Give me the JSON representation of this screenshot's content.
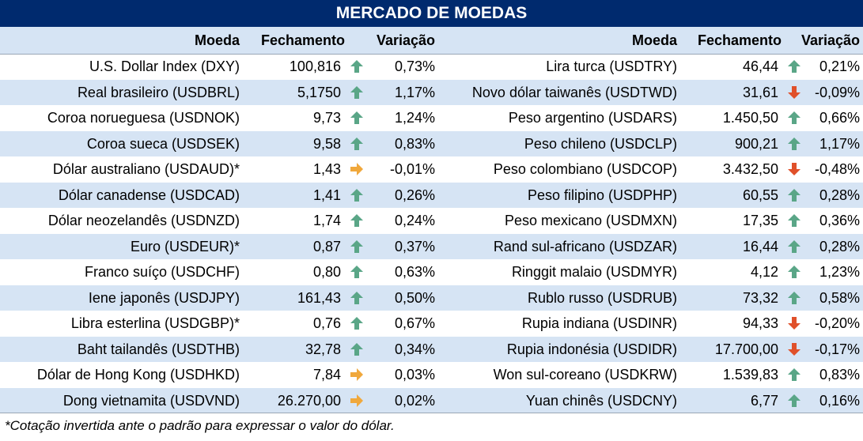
{
  "title": "MERCADO DE MOEDAS",
  "headers": {
    "left": {
      "moeda": "Moeda",
      "fechamento": "Fechamento",
      "variacao": "Variação"
    },
    "right": {
      "moeda": "Moeda",
      "fechamento": "Fechamento",
      "variacao": "Variação"
    }
  },
  "colors": {
    "up": "#5aa687",
    "down": "#e0502a",
    "flat": "#f0a83c",
    "header_bg": "#002a6e",
    "band": "#d6e4f4"
  },
  "left_rows": [
    {
      "moeda": "U.S. Dollar Index (DXY)",
      "fechamento": "100,816",
      "trend": "up",
      "variacao": "0,73%"
    },
    {
      "moeda": "Real brasileiro (USDBRL)",
      "fechamento": "5,1750",
      "trend": "up",
      "variacao": "1,17%"
    },
    {
      "moeda": "Coroa norueguesa (USDNOK)",
      "fechamento": "9,73",
      "trend": "up",
      "variacao": "1,24%"
    },
    {
      "moeda": "Coroa sueca (USDSEK)",
      "fechamento": "9,58",
      "trend": "up",
      "variacao": "0,83%"
    },
    {
      "moeda": "Dólar australiano (USDAUD)*",
      "fechamento": "1,43",
      "trend": "flat",
      "variacao": "-0,01%"
    },
    {
      "moeda": "Dólar canadense (USDCAD)",
      "fechamento": "1,41",
      "trend": "up",
      "variacao": "0,26%"
    },
    {
      "moeda": "Dólar neozelandês (USDNZD)",
      "fechamento": "1,74",
      "trend": "up",
      "variacao": "0,24%"
    },
    {
      "moeda": "Euro (USDEUR)*",
      "fechamento": "0,87",
      "trend": "up",
      "variacao": "0,37%"
    },
    {
      "moeda": "Franco suíço (USDCHF)",
      "fechamento": "0,80",
      "trend": "up",
      "variacao": "0,63%"
    },
    {
      "moeda": "Iene japonês (USDJPY)",
      "fechamento": "161,43",
      "trend": "up",
      "variacao": "0,50%"
    },
    {
      "moeda": "Libra esterlina (USDGBP)*",
      "fechamento": "0,76",
      "trend": "up",
      "variacao": "0,67%"
    },
    {
      "moeda": "Baht tailandês (USDTHB)",
      "fechamento": "32,78",
      "trend": "up",
      "variacao": "0,34%"
    },
    {
      "moeda": "Dólar de Hong Kong (USDHKD)",
      "fechamento": "7,84",
      "trend": "flat",
      "variacao": "0,03%"
    },
    {
      "moeda": "Dong vietnamita (USDVND)",
      "fechamento": "26.270,00",
      "trend": "flat",
      "variacao": "0,02%"
    }
  ],
  "right_rows": [
    {
      "moeda": "Lira turca (USDTRY)",
      "fechamento": "46,44",
      "trend": "up",
      "variacao": "0,21%"
    },
    {
      "moeda": "Novo dólar taiwanês (USDTWD)",
      "fechamento": "31,61",
      "trend": "down",
      "variacao": "-0,09%"
    },
    {
      "moeda": "Peso argentino (USDARS)",
      "fechamento": "1.450,50",
      "trend": "up",
      "variacao": "0,66%"
    },
    {
      "moeda": "Peso chileno (USDCLP)",
      "fechamento": "900,21",
      "trend": "up",
      "variacao": "1,17%"
    },
    {
      "moeda": "Peso colombiano (USDCOP)",
      "fechamento": "3.432,50",
      "trend": "down",
      "variacao": "-0,48%"
    },
    {
      "moeda": "Peso filipino (USDPHP)",
      "fechamento": "60,55",
      "trend": "up",
      "variacao": "0,28%"
    },
    {
      "moeda": "Peso mexicano (USDMXN)",
      "fechamento": "17,35",
      "trend": "up",
      "variacao": "0,36%"
    },
    {
      "moeda": "Rand sul-africano (USDZAR)",
      "fechamento": "16,44",
      "trend": "up",
      "variacao": "0,28%"
    },
    {
      "moeda": "Ringgit malaio (USDMYR)",
      "fechamento": "4,12",
      "trend": "up",
      "variacao": "1,23%"
    },
    {
      "moeda": "Rublo russo (USDRUB)",
      "fechamento": "73,32",
      "trend": "up",
      "variacao": "0,58%"
    },
    {
      "moeda": "Rupia indiana (USDINR)",
      "fechamento": "94,33",
      "trend": "down",
      "variacao": "-0,20%"
    },
    {
      "moeda": "Rupia indonésia (USDIDR)",
      "fechamento": "17.700,00",
      "trend": "down",
      "variacao": "-0,17%"
    },
    {
      "moeda": "Won sul-coreano (USDKRW)",
      "fechamento": "1.539,83",
      "trend": "up",
      "variacao": "0,83%"
    },
    {
      "moeda": "Yuan chinês (USDCNY)",
      "fechamento": "6,77",
      "trend": "up",
      "variacao": "0,16%"
    }
  ],
  "footnote": "*Cotação invertida ante o padrão para expressar o valor do dólar."
}
